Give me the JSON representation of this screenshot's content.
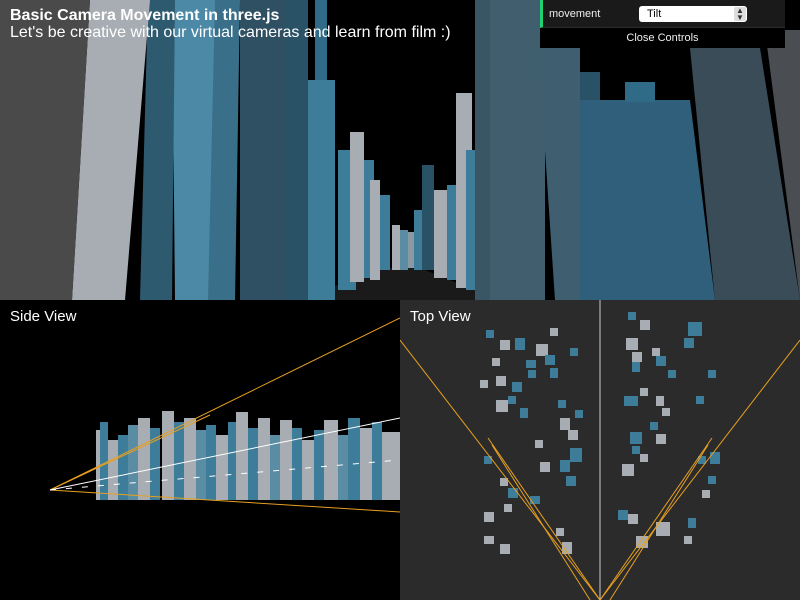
{
  "header": {
    "title": "Basic Camera Movement in three.js",
    "subtitle": "Let's be creative with our virtual cameras and learn from film :)"
  },
  "gui": {
    "control_label": "movement",
    "control_value": "Tilt",
    "close_label": "Close Controls",
    "accent": "#1ed36f"
  },
  "views": {
    "side_label": "Side View",
    "top_label": "Top View"
  },
  "colors": {
    "building_gray": "#a7adb2",
    "building_blue": "#3e7d99",
    "building_dark": "#2a4a5e",
    "frustum": "#e8a020"
  }
}
